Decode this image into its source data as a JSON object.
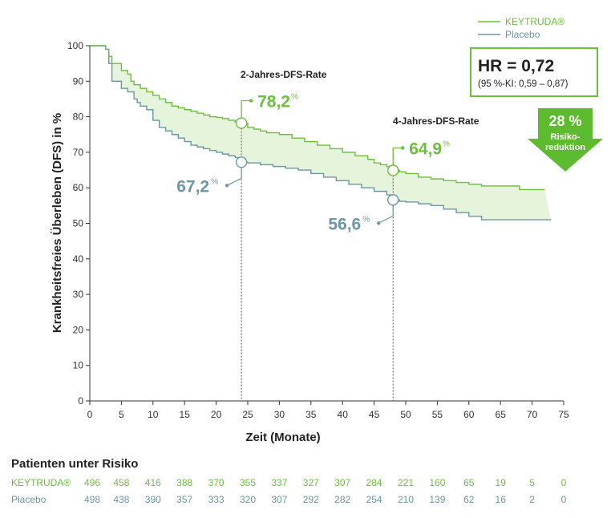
{
  "colors": {
    "keytruda": "#6bbf3a",
    "placebo": "#6b97a6",
    "axis": "#333333",
    "band": "#e6f4dc",
    "arrow": "#5cbb2e",
    "text": "#222222"
  },
  "legend": {
    "keytruda": "KEYTRUDA®",
    "placebo": "Placebo"
  },
  "hr_box": {
    "main": "HR = 0,72",
    "ci": "(95 %-KI: 0,59 – 0,87)"
  },
  "risk_arrow": {
    "pct": "28 %",
    "line1": "Risiko-",
    "line2": "reduktion"
  },
  "chart_data": {
    "type": "line",
    "ylabel": "Krankheitsfreies Überleben (DFS) in %",
    "xlabel": "Zeit (Monate)",
    "xlim": [
      0,
      75
    ],
    "ylim": [
      0,
      100
    ],
    "xticks": [
      0,
      5,
      10,
      15,
      20,
      25,
      30,
      35,
      40,
      45,
      50,
      55,
      60,
      65,
      70,
      75
    ],
    "yticks": [
      0,
      10,
      20,
      30,
      40,
      50,
      60,
      70,
      80,
      90,
      100
    ],
    "series": [
      {
        "name": "KEYTRUDA®",
        "x": [
          0,
          1,
          2.5,
          3,
          3.5,
          5,
          6,
          6.5,
          7,
          8,
          9,
          10,
          11,
          12,
          13,
          14,
          15,
          16,
          17,
          18,
          19,
          20,
          21,
          22,
          23,
          24,
          25,
          26,
          27,
          28,
          30,
          32,
          34,
          36,
          38,
          40,
          42,
          44,
          45,
          46,
          47,
          48,
          49,
          50,
          52,
          54,
          56,
          58,
          60,
          62,
          64,
          66,
          68,
          70,
          72
        ],
        "y": [
          100,
          100,
          99,
          97,
          95,
          93,
          92,
          90,
          89,
          88,
          87,
          86,
          85,
          84,
          83,
          82.5,
          82,
          81.5,
          81,
          80.5,
          80,
          79.8,
          79.5,
          79,
          78.5,
          78.2,
          77,
          76.5,
          76,
          75.5,
          75,
          74,
          73,
          72,
          71,
          70,
          69,
          68,
          67,
          66.5,
          66,
          64.9,
          64.5,
          64,
          63,
          62.5,
          62,
          61.5,
          61,
          60.5,
          60.5,
          60.5,
          59.5,
          59.5,
          59.5
        ]
      },
      {
        "name": "Placebo",
        "x": [
          0,
          1,
          2.5,
          3,
          3.5,
          5,
          6,
          7,
          7.5,
          8,
          9,
          10,
          11,
          12,
          13,
          14,
          15,
          16,
          17,
          18,
          19,
          20,
          21,
          22,
          23,
          24,
          25,
          27,
          29,
          31,
          33,
          35,
          37,
          39,
          41,
          43,
          45,
          47,
          48,
          49,
          50,
          52,
          54,
          56,
          58,
          60,
          62,
          64,
          66,
          68,
          70,
          72,
          73
        ],
        "y": [
          100,
          100,
          99,
          95,
          90,
          88,
          87,
          85,
          84,
          83,
          82,
          79,
          77,
          76,
          75,
          74,
          73,
          72,
          71.5,
          71,
          70.5,
          70,
          69.5,
          69,
          68.5,
          67.2,
          67,
          66.5,
          66,
          65.5,
          65,
          64,
          63,
          62,
          61,
          60,
          59,
          58,
          56.6,
          56.2,
          56,
          55.5,
          55,
          54,
          53,
          52,
          51,
          51,
          51,
          51,
          51,
          51,
          51
        ]
      }
    ],
    "annotations": [
      {
        "label": "2-Jahres-DFS-Rate",
        "x": 24,
        "keytruda": "78,2",
        "placebo": "67,2",
        "unit": "%"
      },
      {
        "label": "4-Jahres-DFS-Rate",
        "x": 48,
        "keytruda": "64,9",
        "placebo": "56,6",
        "unit": "%"
      }
    ]
  },
  "risk_table": {
    "title": "Patienten unter Risiko",
    "rows": [
      {
        "label": "KEYTRUDA®",
        "values": [
          "496",
          "458",
          "416",
          "388",
          "370",
          "355",
          "337",
          "327",
          "307",
          "284",
          "221",
          "160",
          "65",
          "19",
          "5",
          "0"
        ]
      },
      {
        "label": "Placebo",
        "values": [
          "498",
          "438",
          "390",
          "357",
          "333",
          "320",
          "307",
          "292",
          "282",
          "254",
          "210",
          "139",
          "62",
          "16",
          "2",
          "0"
        ]
      }
    ]
  }
}
